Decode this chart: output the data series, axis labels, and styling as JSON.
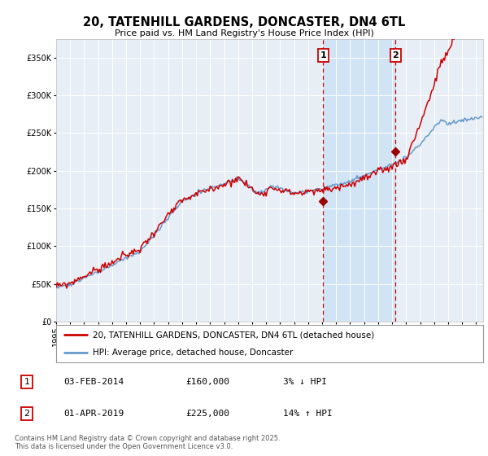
{
  "title": "20, TATENHILL GARDENS, DONCASTER, DN4 6TL",
  "subtitle": "Price paid vs. HM Land Registry's House Price Index (HPI)",
  "background_color": "#ffffff",
  "plot_bg_color": "#e8eef5",
  "highlight_bg_color": "#d0e4f5",
  "ylim": [
    0,
    375000
  ],
  "yticks": [
    0,
    50000,
    100000,
    150000,
    200000,
    250000,
    300000,
    350000
  ],
  "ytick_labels": [
    "£0",
    "£50K",
    "£100K",
    "£150K",
    "£200K",
    "£250K",
    "£300K",
    "£350K"
  ],
  "sale1_date": "03-FEB-2014",
  "sale1_price": 160000,
  "sale1_year": 2014.08,
  "sale1_pct": "3%",
  "sale1_direction": "↓",
  "sale2_date": "01-APR-2019",
  "sale2_price": 225000,
  "sale2_year": 2019.25,
  "sale2_pct": "14%",
  "sale2_direction": "↑",
  "legend_line1": "20, TATENHILL GARDENS, DONCASTER, DN4 6TL (detached house)",
  "legend_line2": "HPI: Average price, detached house, Doncaster",
  "footer": "Contains HM Land Registry data © Crown copyright and database right 2025.\nThis data is licensed under the Open Government Licence v3.0.",
  "red_color": "#cc0000",
  "blue_color": "#6699cc",
  "vline_color": "#cc0000",
  "marker_color": "#990000"
}
